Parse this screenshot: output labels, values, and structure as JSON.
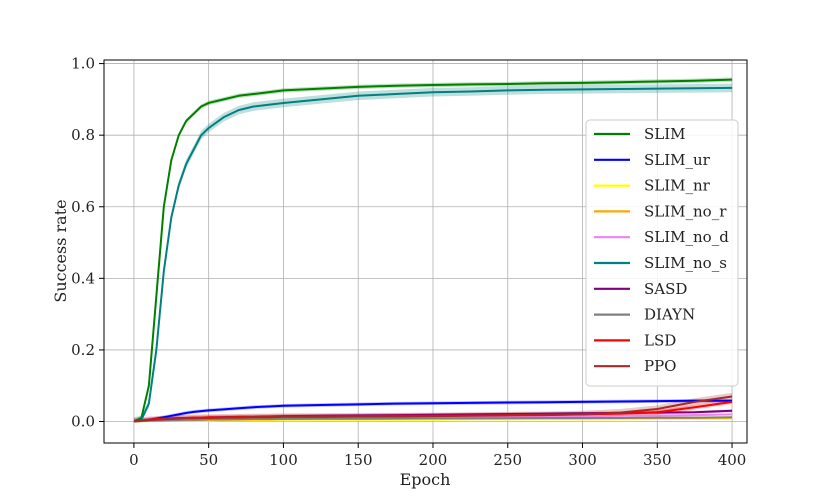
{
  "chart_data": {
    "type": "line",
    "xlabel": "Epoch",
    "ylabel": "Success rate",
    "xlim": [
      -20,
      410
    ],
    "ylim": [
      -0.06,
      1.01
    ],
    "xticks": [
      0,
      50,
      100,
      150,
      200,
      250,
      300,
      350,
      400
    ],
    "xtick_labels": [
      "0",
      "50",
      "100",
      "150",
      "200",
      "250",
      "300",
      "350",
      "400"
    ],
    "yticks": [
      0.0,
      0.2,
      0.4,
      0.6,
      0.8,
      1.0
    ],
    "ytick_labels": [
      "0.0",
      "0.2",
      "0.4",
      "0.6",
      "0.8",
      "1.0"
    ],
    "grid": true,
    "legend_position": "right",
    "x": [
      0,
      5,
      10,
      15,
      20,
      25,
      30,
      35,
      40,
      45,
      50,
      60,
      70,
      80,
      90,
      100,
      125,
      150,
      175,
      200,
      225,
      250,
      275,
      300,
      325,
      350,
      375,
      400
    ],
    "series": [
      {
        "name": "SLIM",
        "color": "#008000",
        "band": 0.006,
        "values": [
          0.0,
          0.01,
          0.1,
          0.35,
          0.6,
          0.73,
          0.8,
          0.84,
          0.86,
          0.88,
          0.89,
          0.9,
          0.91,
          0.915,
          0.92,
          0.925,
          0.93,
          0.935,
          0.938,
          0.94,
          0.942,
          0.943,
          0.945,
          0.946,
          0.948,
          0.95,
          0.952,
          0.955
        ]
      },
      {
        "name": "SLIM_ur",
        "color": "#0000ff",
        "band": 0.005,
        "values": [
          0.0,
          0.002,
          0.005,
          0.008,
          0.012,
          0.016,
          0.02,
          0.024,
          0.027,
          0.029,
          0.031,
          0.034,
          0.037,
          0.04,
          0.042,
          0.044,
          0.046,
          0.048,
          0.05,
          0.051,
          0.052,
          0.053,
          0.054,
          0.055,
          0.056,
          0.057,
          0.058,
          0.058
        ]
      },
      {
        "name": "SLIM_nr",
        "color": "#ffff00",
        "band": 0.002,
        "values": [
          0.0,
          0.001,
          0.001,
          0.002,
          0.002,
          0.002,
          0.003,
          0.003,
          0.003,
          0.003,
          0.003,
          0.004,
          0.004,
          0.004,
          0.004,
          0.005,
          0.005,
          0.005,
          0.005,
          0.005,
          0.006,
          0.006,
          0.006,
          0.006,
          0.006,
          0.007,
          0.007,
          0.007
        ]
      },
      {
        "name": "SLIM_no_r",
        "color": "#ffa500",
        "band": 0.002,
        "values": [
          0.0,
          0.001,
          0.002,
          0.002,
          0.003,
          0.003,
          0.004,
          0.004,
          0.004,
          0.005,
          0.005,
          0.005,
          0.006,
          0.006,
          0.006,
          0.007,
          0.007,
          0.007,
          0.008,
          0.008,
          0.008,
          0.009,
          0.009,
          0.009,
          0.01,
          0.01,
          0.01,
          0.011
        ]
      },
      {
        "name": "SLIM_no_d",
        "color": "#ee82ee",
        "band": 0.003,
        "values": [
          0.0,
          0.002,
          0.003,
          0.004,
          0.005,
          0.006,
          0.007,
          0.007,
          0.008,
          0.008,
          0.009,
          0.009,
          0.01,
          0.01,
          0.011,
          0.011,
          0.012,
          0.012,
          0.013,
          0.013,
          0.014,
          0.014,
          0.015,
          0.015,
          0.016,
          0.017,
          0.018,
          0.02
        ]
      },
      {
        "name": "SLIM_no_s",
        "color": "#008080",
        "band": 0.012,
        "values": [
          0.0,
          0.005,
          0.05,
          0.2,
          0.42,
          0.57,
          0.66,
          0.72,
          0.76,
          0.8,
          0.82,
          0.85,
          0.87,
          0.88,
          0.885,
          0.89,
          0.9,
          0.91,
          0.915,
          0.92,
          0.922,
          0.925,
          0.927,
          0.928,
          0.929,
          0.93,
          0.931,
          0.932
        ]
      },
      {
        "name": "SASD",
        "color": "#800080",
        "band": 0.004,
        "values": [
          0.0,
          0.003,
          0.004,
          0.005,
          0.006,
          0.007,
          0.008,
          0.009,
          0.01,
          0.01,
          0.011,
          0.012,
          0.013,
          0.013,
          0.014,
          0.015,
          0.016,
          0.017,
          0.018,
          0.019,
          0.02,
          0.021,
          0.022,
          0.023,
          0.024,
          0.025,
          0.026,
          0.03
        ]
      },
      {
        "name": "DIAYN",
        "color": "#808080",
        "band": 0.002,
        "values": [
          0.0,
          0.001,
          0.002,
          0.003,
          0.003,
          0.004,
          0.004,
          0.005,
          0.005,
          0.005,
          0.006,
          0.006,
          0.006,
          0.007,
          0.007,
          0.007,
          0.008,
          0.008,
          0.008,
          0.009,
          0.009,
          0.009,
          0.01,
          0.01,
          0.01,
          0.011,
          0.011,
          0.012
        ]
      },
      {
        "name": "LSD",
        "color": "#ff0000",
        "band": 0.006,
        "values": [
          0.0,
          0.003,
          0.005,
          0.007,
          0.008,
          0.009,
          0.01,
          0.01,
          0.011,
          0.011,
          0.012,
          0.012,
          0.013,
          0.013,
          0.014,
          0.014,
          0.015,
          0.015,
          0.016,
          0.016,
          0.017,
          0.018,
          0.019,
          0.02,
          0.022,
          0.026,
          0.04,
          0.055
        ]
      },
      {
        "name": "PPO",
        "color": "#a52a2a",
        "band": 0.01,
        "values": [
          0.0,
          0.002,
          0.004,
          0.005,
          0.006,
          0.007,
          0.008,
          0.009,
          0.009,
          0.01,
          0.01,
          0.011,
          0.011,
          0.012,
          0.012,
          0.013,
          0.013,
          0.014,
          0.014,
          0.015,
          0.016,
          0.017,
          0.018,
          0.02,
          0.025,
          0.035,
          0.055,
          0.07
        ]
      }
    ]
  }
}
